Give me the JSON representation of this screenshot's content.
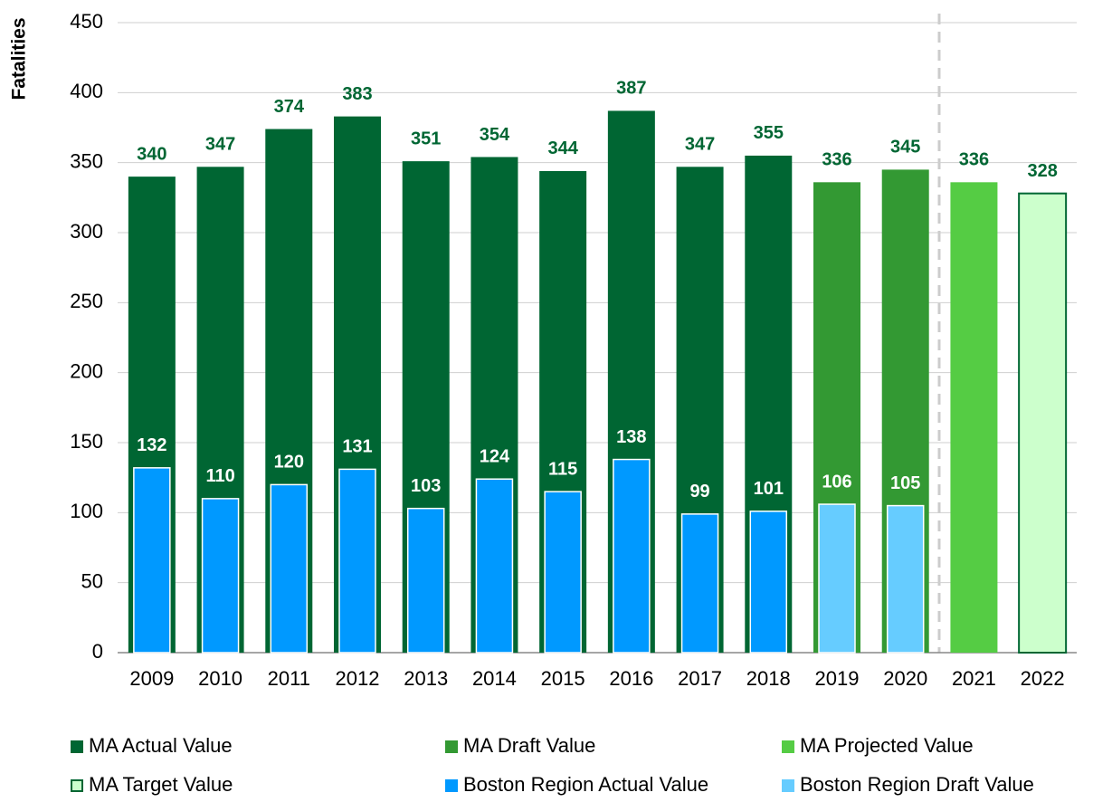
{
  "chart_data": {
    "type": "bar",
    "y_label": "Fatalities",
    "categories": [
      "2009",
      "2010",
      "2011",
      "2012",
      "2013",
      "2014",
      "2015",
      "2016",
      "2017",
      "2018",
      "2019",
      "2020",
      "2021",
      "2022"
    ],
    "series": [
      {
        "name": "MA Actual Value",
        "color": "#006633",
        "values": [
          340,
          347,
          374,
          383,
          351,
          354,
          344,
          387,
          347,
          355,
          null,
          null,
          null,
          null
        ]
      },
      {
        "name": "MA Draft Value",
        "color": "#339933",
        "values": [
          null,
          null,
          null,
          null,
          null,
          null,
          null,
          null,
          null,
          null,
          336,
          345,
          null,
          null
        ]
      },
      {
        "name": "MA Projected Value",
        "color": "#55cc44",
        "values": [
          null,
          null,
          null,
          null,
          null,
          null,
          null,
          null,
          null,
          null,
          null,
          null,
          336,
          null
        ]
      },
      {
        "name": "MA Target Value",
        "color": "#ccffcc",
        "edgecolor": "#006633",
        "values": [
          null,
          null,
          null,
          null,
          null,
          null,
          null,
          null,
          null,
          null,
          null,
          null,
          null,
          328
        ]
      },
      {
        "name": "Boston Region Actual Value",
        "color": "#0099ff",
        "values": [
          132,
          110,
          120,
          131,
          103,
          124,
          115,
          138,
          99,
          101,
          null,
          null,
          null,
          null
        ]
      },
      {
        "name": "Boston Region Draft Value",
        "color": "#66ccff",
        "values": [
          null,
          null,
          null,
          null,
          null,
          null,
          null,
          null,
          null,
          null,
          106,
          105,
          null,
          null
        ]
      }
    ],
    "ylim": [
      0,
      450
    ],
    "yticks": [
      0,
      50,
      100,
      150,
      200,
      250,
      300,
      350,
      400,
      450
    ],
    "grid": true,
    "legend": "bottom"
  }
}
